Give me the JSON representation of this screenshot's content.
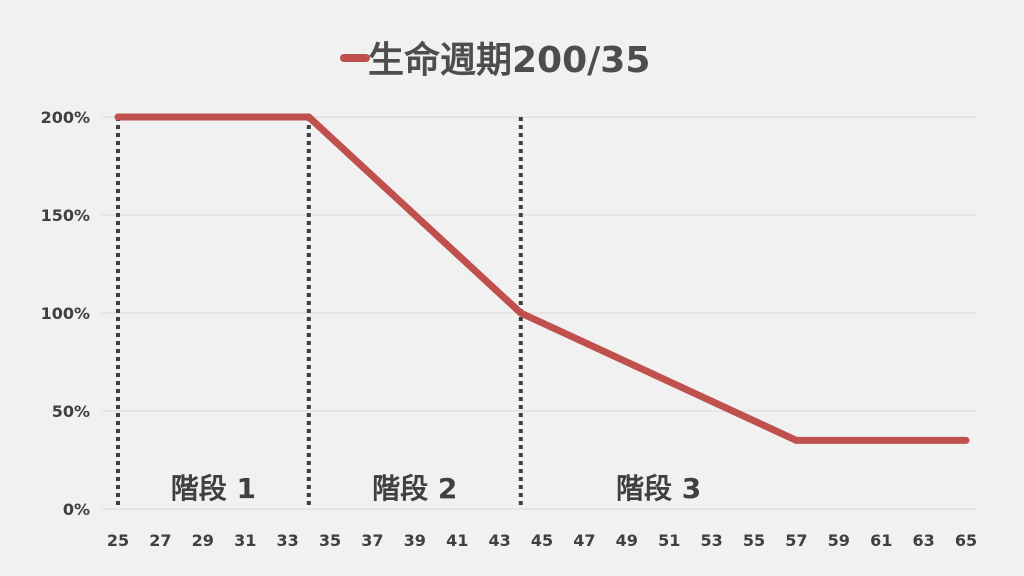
{
  "chart_data": {
    "type": "line",
    "legend": {
      "placement": "top-center",
      "label": "生命週期200/35"
    },
    "x": [
      25,
      26,
      27,
      28,
      29,
      30,
      31,
      32,
      33,
      34,
      35,
      36,
      37,
      38,
      39,
      40,
      41,
      42,
      43,
      44,
      45,
      46,
      47,
      48,
      49,
      50,
      51,
      52,
      53,
      54,
      55,
      56,
      57,
      58,
      59,
      60,
      61,
      62,
      63,
      64,
      65
    ],
    "x_tick_labels": [
      "25",
      "27",
      "29",
      "31",
      "33",
      "35",
      "37",
      "39",
      "41",
      "43",
      "45",
      "47",
      "49",
      "51",
      "53",
      "55",
      "57",
      "59",
      "61",
      "63",
      "65"
    ],
    "series": [
      {
        "name": "生命週期200/35",
        "color": "#c0504d",
        "points": [
          {
            "x": 25,
            "y": 200
          },
          {
            "x": 34,
            "y": 200
          },
          {
            "x": 44,
            "y": 100
          },
          {
            "x": 57,
            "y": 35
          },
          {
            "x": 65,
            "y": 35
          }
        ]
      }
    ],
    "y_ticks": [
      0,
      50,
      100,
      150,
      200
    ],
    "y_tick_labels": [
      "0%",
      "50%",
      "100%",
      "150%",
      "200%"
    ],
    "ylim": [
      0,
      200
    ],
    "xlim": [
      25,
      65
    ],
    "grid": "horizontal",
    "phase_dividers": [
      25,
      34,
      44
    ],
    "phases": [
      {
        "label": "階段 1",
        "from": 25,
        "to": 34
      },
      {
        "label": "階段 2",
        "from": 34,
        "to": 44
      },
      {
        "label": "階段 3",
        "from": 44,
        "to": 57
      }
    ],
    "colors": {
      "background": "#f2f1f1",
      "line": "#c0504d",
      "grid": "#d9d9d9",
      "divider": "#404040",
      "text": "#404040"
    }
  }
}
